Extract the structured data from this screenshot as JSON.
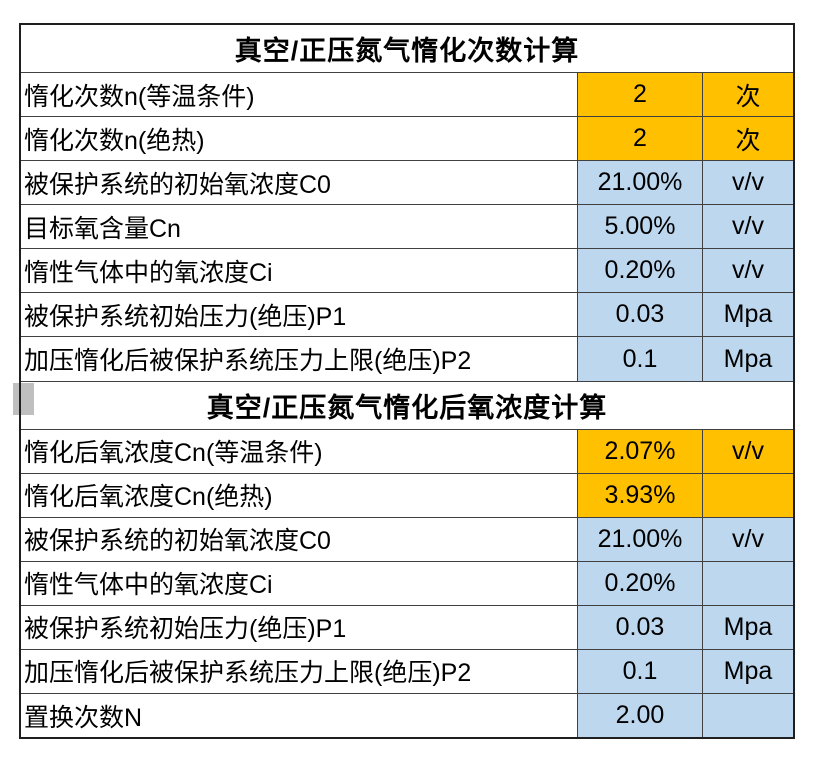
{
  "page": {
    "background": "#ffffff"
  },
  "table": {
    "colors": {
      "orange": "#FFC000",
      "blue": "#BDD7EE",
      "grid_line": "#404040",
      "outer_border": "#1f1f1f",
      "text": "#000000",
      "artifact_gray": "#bfbfbf"
    },
    "sections": [
      {
        "title": "真空/正压氮气惰化次数计算",
        "rows": [
          {
            "label": "惰化次数n(等温条件)",
            "value": "2",
            "unit": "次",
            "highlight": "orange"
          },
          {
            "label": "惰化次数n(绝热)",
            "value": "2",
            "unit": "次",
            "highlight": "orange"
          },
          {
            "label": "被保护系统的初始氧浓度C0",
            "value": "21.00%",
            "unit": "v/v",
            "highlight": "blue"
          },
          {
            "label": "目标氧含量Cn",
            "value": "5.00%",
            "unit": "v/v",
            "highlight": "blue"
          },
          {
            "label": "惰性气体中的氧浓度Ci",
            "value": "0.20%",
            "unit": "v/v",
            "highlight": "blue"
          },
          {
            "label": "被保护系统初始压力(绝压)P1",
            "value": "0.03",
            "unit": "Mpa",
            "highlight": "blue"
          },
          {
            "label": "加压惰化后被保护系统压力上限(绝压)P2",
            "value": "0.1",
            "unit": "Mpa",
            "highlight": "blue"
          }
        ]
      },
      {
        "title": "真空/正压氮气惰化后氧浓度计算",
        "rows": [
          {
            "label": "惰化后氧浓度Cn(等温条件)",
            "value": "2.07%",
            "unit": "v/v",
            "highlight": "orange"
          },
          {
            "label": "惰化后氧浓度Cn(绝热)",
            "value": "3.93%",
            "unit": "",
            "highlight": "orange"
          },
          {
            "label": "被保护系统的初始氧浓度C0",
            "value": "21.00%",
            "unit": "v/v",
            "highlight": "blue"
          },
          {
            "label": "惰性气体中的氧浓度Ci",
            "value": "0.20%",
            "unit": "",
            "highlight": "blue"
          },
          {
            "label": "被保护系统初始压力(绝压)P1",
            "value": "0.03",
            "unit": "Mpa",
            "highlight": "blue"
          },
          {
            "label": "加压惰化后被保护系统压力上限(绝压)P2",
            "value": "0.1",
            "unit": "Mpa",
            "highlight": "blue"
          },
          {
            "label": "置换次数N",
            "value": "2.00",
            "unit": "",
            "highlight": "blue"
          }
        ]
      }
    ]
  }
}
